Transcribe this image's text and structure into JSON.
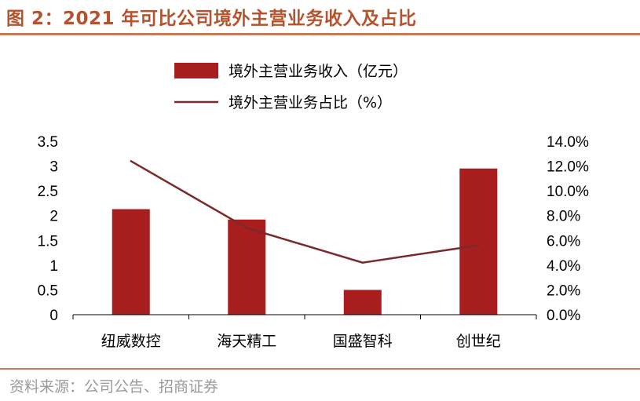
{
  "header": {
    "title": "图 2：2021 年可比公司境外主营业务收入及占比"
  },
  "footer": {
    "source": "资料来源：公司公告、招商证券"
  },
  "colors": {
    "bar": "#a81d1d",
    "line": "#7b2a2a",
    "accent": "#c77a5a",
    "title": "#b5532f"
  },
  "chart_data": {
    "type": "bar+line",
    "categories": [
      "纽威数控",
      "海天精工",
      "国盛智科",
      "创世纪"
    ],
    "series": [
      {
        "name": "境外主营业务收入（亿元）",
        "type": "bar",
        "axis": "left",
        "values": [
          2.13,
          1.92,
          0.5,
          2.95
        ]
      },
      {
        "name": "境外主营业务占比（%）",
        "type": "line",
        "axis": "right",
        "values": [
          12.4,
          7.0,
          4.2,
          5.6
        ]
      }
    ],
    "y_left": {
      "ylim": [
        0,
        3.5
      ],
      "ticks": [
        "0",
        "0.5",
        "1",
        "1.5",
        "2",
        "2.5",
        "3",
        "3.5"
      ]
    },
    "y_right": {
      "ylim": [
        0,
        14
      ],
      "ticks": [
        "0.0%",
        "2.0%",
        "4.0%",
        "6.0%",
        "8.0%",
        "10.0%",
        "12.0%",
        "14.0%"
      ]
    },
    "legend_position": "top-center",
    "grid": false
  }
}
